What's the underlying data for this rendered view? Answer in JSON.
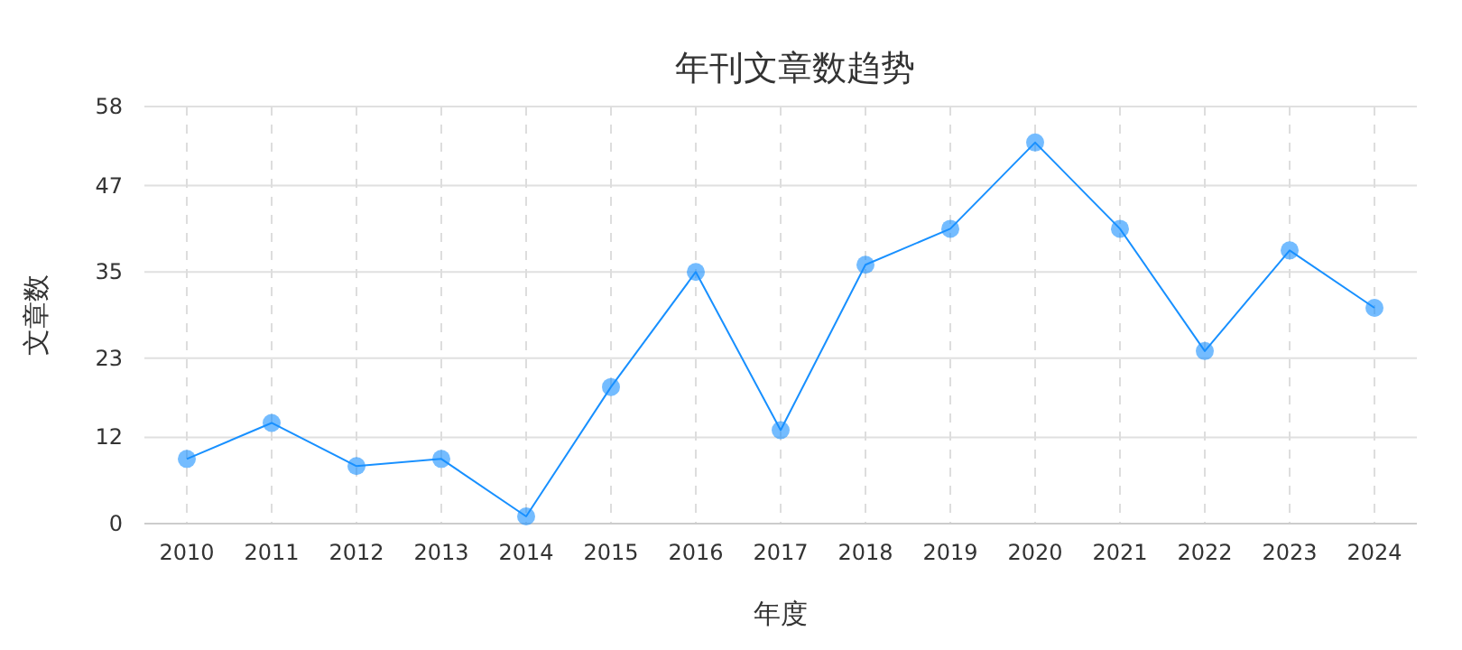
{
  "chart_data": {
    "type": "line",
    "title": "年刊文章数趋势",
    "xlabel": "年度",
    "ylabel": "文章数",
    "categories": [
      "2010",
      "2011",
      "2012",
      "2013",
      "2014",
      "2015",
      "2016",
      "2017",
      "2018",
      "2019",
      "2020",
      "2021",
      "2022",
      "2023",
      "2024"
    ],
    "series": [
      {
        "color": "#1890ff",
        "values": [
          9,
          14,
          8,
          9,
          1,
          19,
          35,
          13,
          36,
          41,
          53,
          41,
          24,
          38,
          30
        ]
      }
    ],
    "ylim": [
      0,
      58
    ],
    "yticks": [
      0,
      12,
      23,
      35,
      47,
      58
    ],
    "grid": true,
    "marker": "circle",
    "line_style": "solid"
  }
}
